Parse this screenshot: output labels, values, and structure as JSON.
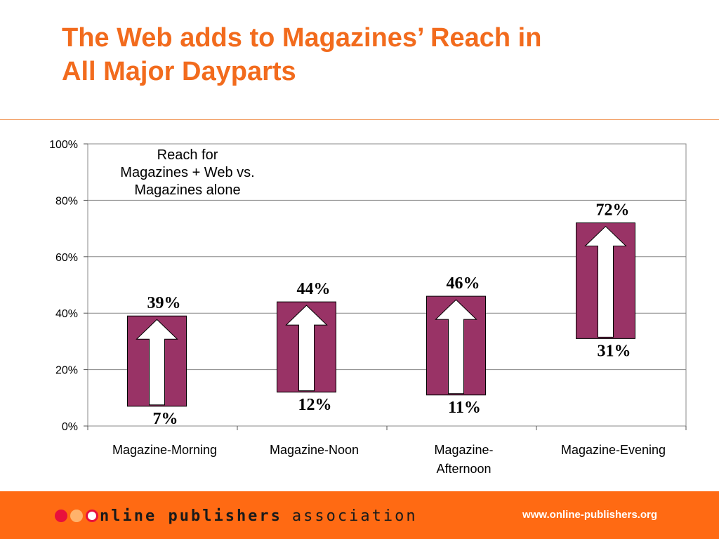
{
  "slide": {
    "title_line1": "The Web adds to Magazines’ Reach in",
    "title_line2": "All Major Dayparts",
    "accent_color": "#f26b1d"
  },
  "chart_data": {
    "type": "bar",
    "subtype": "floating-range",
    "annotation": [
      "Reach for",
      "Magazines + Web vs.",
      "Magazines alone"
    ],
    "categories": [
      "Magazine-Morning",
      "Magazine-Noon",
      "Magazine-Afternoon",
      "Magazine-Evening"
    ],
    "category_label_lines": [
      [
        "Magazine-Morning"
      ],
      [
        "Magazine-Noon"
      ],
      [
        "Magazine-",
        "Afternoon"
      ],
      [
        "Magazine-Evening"
      ]
    ],
    "series": [
      {
        "values": [
          7,
          12,
          11,
          31
        ]
      },
      {
        "values": [
          39,
          44,
          46,
          72
        ]
      }
    ],
    "low_labels": [
      "7%",
      "12%",
      "11%",
      "31%"
    ],
    "high_labels": [
      "39%",
      "44%",
      "46%",
      "72%"
    ],
    "ylim": [
      0,
      100
    ],
    "yticks": [
      0,
      20,
      40,
      60,
      80,
      100
    ],
    "ytick_labels": [
      "0%",
      "20%",
      "40%",
      "60%",
      "80%",
      "100%"
    ],
    "grid": true,
    "bar_color": "#993366",
    "arrow_color": "#ffffff"
  },
  "footer": {
    "logo_part1": "nline publishers",
    "logo_part2": "association",
    "url": "www.online-publishers.org",
    "background_color": "#ff6a13"
  }
}
